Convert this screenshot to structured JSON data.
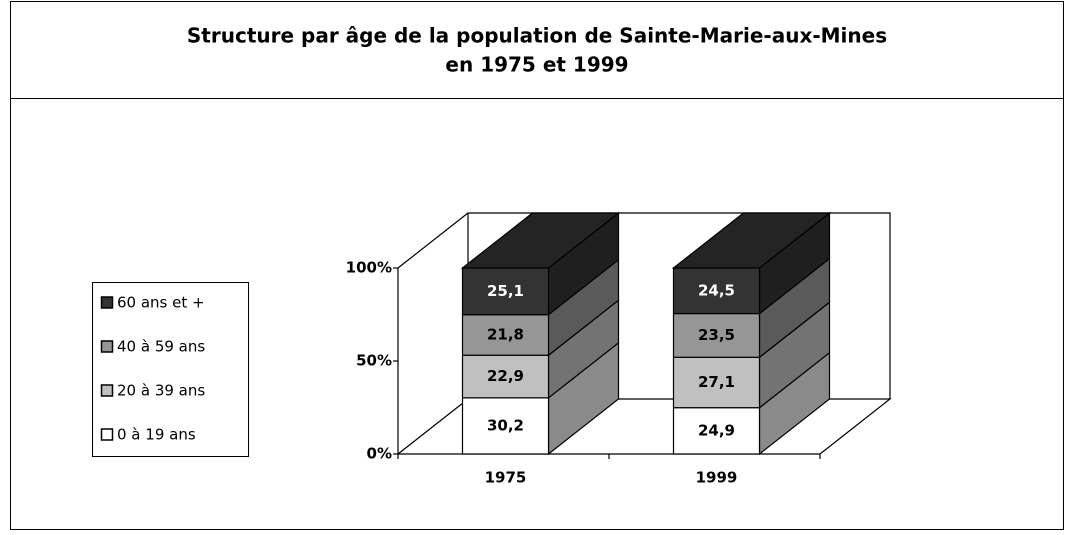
{
  "chart_data": {
    "type": "stacked-bar-3d",
    "title": [
      "Structure par âge de la population de Sainte-Marie-aux-Mines",
      "en 1975 et 1999"
    ],
    "categories": [
      "1975",
      "1999"
    ],
    "series": [
      {
        "name": "0 à 19 ans",
        "color": "#ffffff",
        "values": [
          30.2,
          24.9
        ],
        "value_labels": [
          "30,2",
          "24,9"
        ]
      },
      {
        "name": "20 à 39 ans",
        "color": "#c0c0c0",
        "values": [
          22.9,
          27.1
        ],
        "value_labels": [
          "22,9",
          "27,1"
        ]
      },
      {
        "name": "40 à 59 ans",
        "color": "#969696",
        "values": [
          21.8,
          23.5
        ],
        "value_labels": [
          "21,8",
          "23,5"
        ]
      },
      {
        "name": "60 ans et +",
        "color": "#333333",
        "values": [
          25.1,
          24.5
        ],
        "value_labels": [
          "25,1",
          "24,5"
        ]
      }
    ],
    "ylim": [
      0,
      100
    ],
    "yticks": [
      {
        "value": 0,
        "label": "0%"
      },
      {
        "value": 50,
        "label": "50%"
      },
      {
        "value": 100,
        "label": "100%"
      }
    ],
    "legend": "left"
  }
}
